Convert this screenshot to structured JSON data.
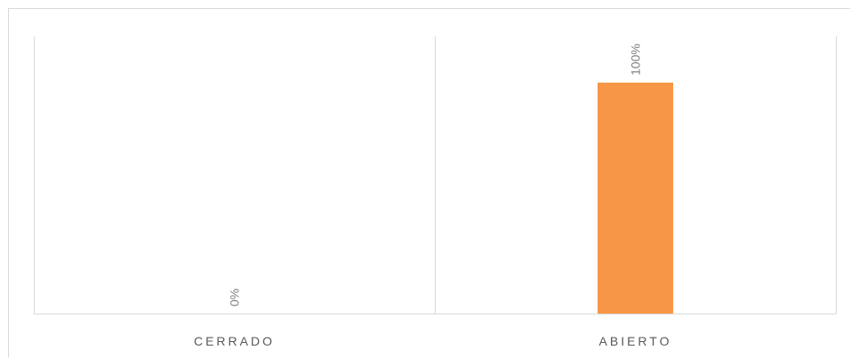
{
  "chart_data": {
    "type": "bar",
    "categories": [
      "CERRADO",
      "ABIERTO"
    ],
    "values": [
      0,
      100
    ],
    "data_labels": [
      "0%",
      "100%"
    ],
    "value_unit": "%",
    "ylim": [
      0,
      120
    ],
    "grid": false,
    "bar_color": "#f79646",
    "axis_color": "#d9d9d9",
    "label_color": "#7f7f7f",
    "legend": "none"
  }
}
